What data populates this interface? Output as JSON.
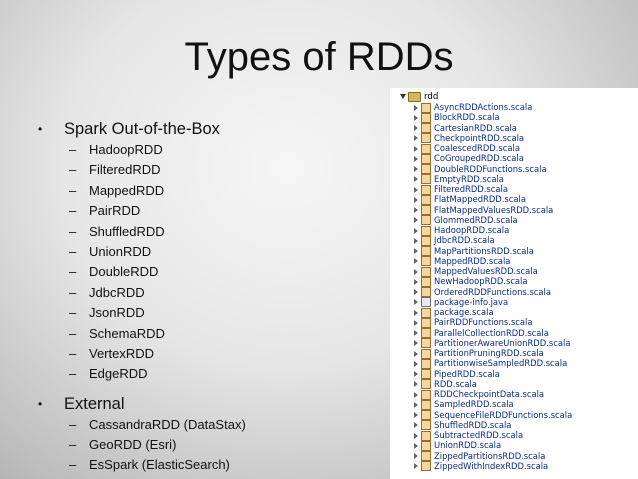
{
  "slide": {
    "title": "Types of RDDs",
    "sections": [
      {
        "heading": "Spark Out-of-the-Box",
        "items": [
          "HadoopRDD",
          "FilteredRDD",
          "MappedRDD",
          "PairRDD",
          "ShuffledRDD",
          "UnionRDD",
          "DoubleRDD",
          "JdbcRDD",
          "JsonRDD",
          "SchemaRDD",
          "VertexRDD",
          "EdgeRDD"
        ]
      },
      {
        "heading": "External",
        "items": [
          "CassandraRDD (DataStax)",
          "GeoRDD (Esri)",
          "EsSpark (ElasticSearch)"
        ]
      }
    ],
    "bullet_glyph": "•",
    "dash_glyph": "–"
  },
  "tree": {
    "root_label": "rdd",
    "files": [
      "AsyncRDDActions.scala",
      "BlockRDD.scala",
      "CartesianRDD.scala",
      "CheckpointRDD.scala",
      "CoalescedRDD.scala",
      "CoGroupedRDD.scala",
      "DoubleRDDFunctions.scala",
      "EmptyRDD.scala",
      "FilteredRDD.scala",
      "FlatMappedRDD.scala",
      "FlatMappedValuesRDD.scala",
      "GlommedRDD.scala",
      "HadoopRDD.scala",
      "JdbcRDD.scala",
      "MapPartitionsRDD.scala",
      "MappedRDD.scala",
      "MappedValuesRDD.scala",
      "NewHadoopRDD.scala",
      "OrderedRDDFunctions.scala",
      "package-info.java",
      "package.scala",
      "PairRDDFunctions.scala",
      "ParallelCollectionRDD.scala",
      "PartitionerAwareUnionRDD.scala",
      "PartitionPruningRDD.scala",
      "PartitionwiseSampledRDD.scala",
      "PipedRDD.scala",
      "RDD.scala",
      "RDDCheckpointData.scala",
      "SampledRDD.scala",
      "SequenceFileRDDFunctions.scala",
      "ShuffledRDD.scala",
      "SubtractedRDD.scala",
      "UnionRDD.scala",
      "ZippedPartitionsRDD.scala",
      "ZippedWithIndexRDD.scala"
    ]
  }
}
